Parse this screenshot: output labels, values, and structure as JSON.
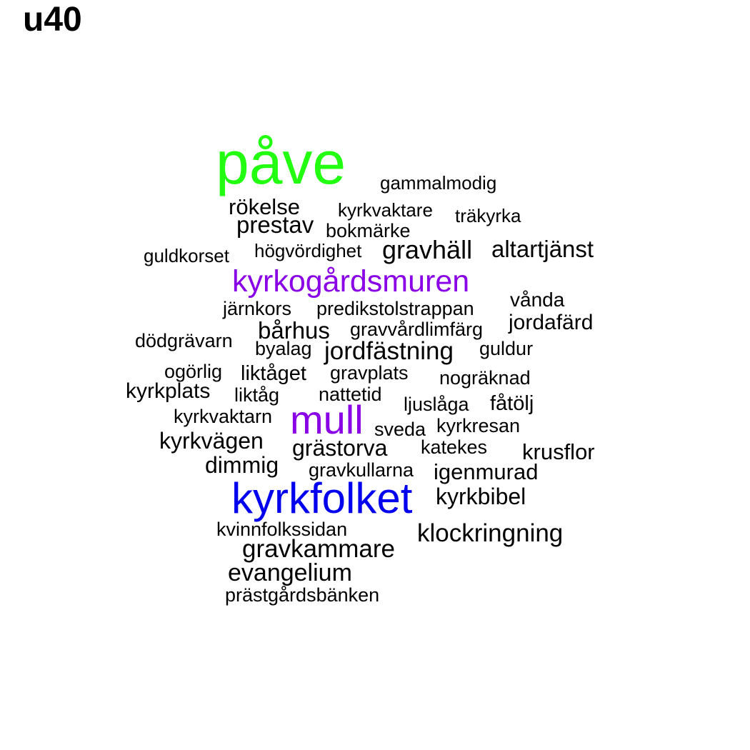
{
  "title": "u40",
  "colors": {
    "black": "#000000",
    "green": "#22ff11",
    "purple": "#8a00e6",
    "blue": "#0000ee"
  },
  "words": [
    {
      "text": "påve",
      "weight": 6,
      "color": "green"
    },
    {
      "text": "gammalmodig",
      "weight": 1,
      "color": "black"
    },
    {
      "text": "rökelse",
      "weight": 1,
      "color": "black"
    },
    {
      "text": "kyrkvaktare",
      "weight": 1,
      "color": "black"
    },
    {
      "text": "träkyrka",
      "weight": 1,
      "color": "black"
    },
    {
      "text": "prestav",
      "weight": 1,
      "color": "black"
    },
    {
      "text": "bokmärke",
      "weight": 1,
      "color": "black"
    },
    {
      "text": "guldkorset",
      "weight": 1,
      "color": "black"
    },
    {
      "text": "högvördighet",
      "weight": 1,
      "color": "black"
    },
    {
      "text": "gravhäll",
      "weight": 1,
      "color": "black"
    },
    {
      "text": "altartjänst",
      "weight": 1,
      "color": "black"
    },
    {
      "text": "kyrkogårdsmuren",
      "weight": 3,
      "color": "purple"
    },
    {
      "text": "vånda",
      "weight": 1,
      "color": "black"
    },
    {
      "text": "järnkors",
      "weight": 1,
      "color": "black"
    },
    {
      "text": "predikstolstrappan",
      "weight": 1,
      "color": "black"
    },
    {
      "text": "jordafärd",
      "weight": 1,
      "color": "black"
    },
    {
      "text": "bårhus",
      "weight": 1,
      "color": "black"
    },
    {
      "text": "gravvårdlimfärg",
      "weight": 1,
      "color": "black"
    },
    {
      "text": "dödgrävarn",
      "weight": 1,
      "color": "black"
    },
    {
      "text": "byalag",
      "weight": 1,
      "color": "black"
    },
    {
      "text": "jordfästning",
      "weight": 1,
      "color": "black"
    },
    {
      "text": "guldur",
      "weight": 1,
      "color": "black"
    },
    {
      "text": "ogörlig",
      "weight": 1,
      "color": "black"
    },
    {
      "text": "liktåget",
      "weight": 1,
      "color": "black"
    },
    {
      "text": "gravplats",
      "weight": 1,
      "color": "black"
    },
    {
      "text": "nogräknad",
      "weight": 1,
      "color": "black"
    },
    {
      "text": "kyrkplats",
      "weight": 1,
      "color": "black"
    },
    {
      "text": "liktåg",
      "weight": 1,
      "color": "black"
    },
    {
      "text": "nattetid",
      "weight": 1,
      "color": "black"
    },
    {
      "text": "ljuslåga",
      "weight": 1,
      "color": "black"
    },
    {
      "text": "fåtölj",
      "weight": 1,
      "color": "black"
    },
    {
      "text": "kyrkvaktarn",
      "weight": 1,
      "color": "black"
    },
    {
      "text": "mull",
      "weight": 4,
      "color": "purple"
    },
    {
      "text": "sveda",
      "weight": 1,
      "color": "black"
    },
    {
      "text": "kyrkresan",
      "weight": 1,
      "color": "black"
    },
    {
      "text": "kyrkvägen",
      "weight": 1,
      "color": "black"
    },
    {
      "text": "grästorva",
      "weight": 1,
      "color": "black"
    },
    {
      "text": "katekes",
      "weight": 1,
      "color": "black"
    },
    {
      "text": "krusflor",
      "weight": 1,
      "color": "black"
    },
    {
      "text": "dimmig",
      "weight": 1,
      "color": "black"
    },
    {
      "text": "gravkullarna",
      "weight": 1,
      "color": "black"
    },
    {
      "text": "igenmurad",
      "weight": 1,
      "color": "black"
    },
    {
      "text": "kyrkfolket",
      "weight": 5,
      "color": "blue"
    },
    {
      "text": "kyrkbibel",
      "weight": 1,
      "color": "black"
    },
    {
      "text": "kvinnfolkssidan",
      "weight": 1,
      "color": "black"
    },
    {
      "text": "klockringning",
      "weight": 1,
      "color": "black"
    },
    {
      "text": "gravkammare",
      "weight": 1,
      "color": "black"
    },
    {
      "text": "evangelium",
      "weight": 1,
      "color": "black"
    },
    {
      "text": "prästgårdsbänken",
      "weight": 1,
      "color": "black"
    }
  ]
}
